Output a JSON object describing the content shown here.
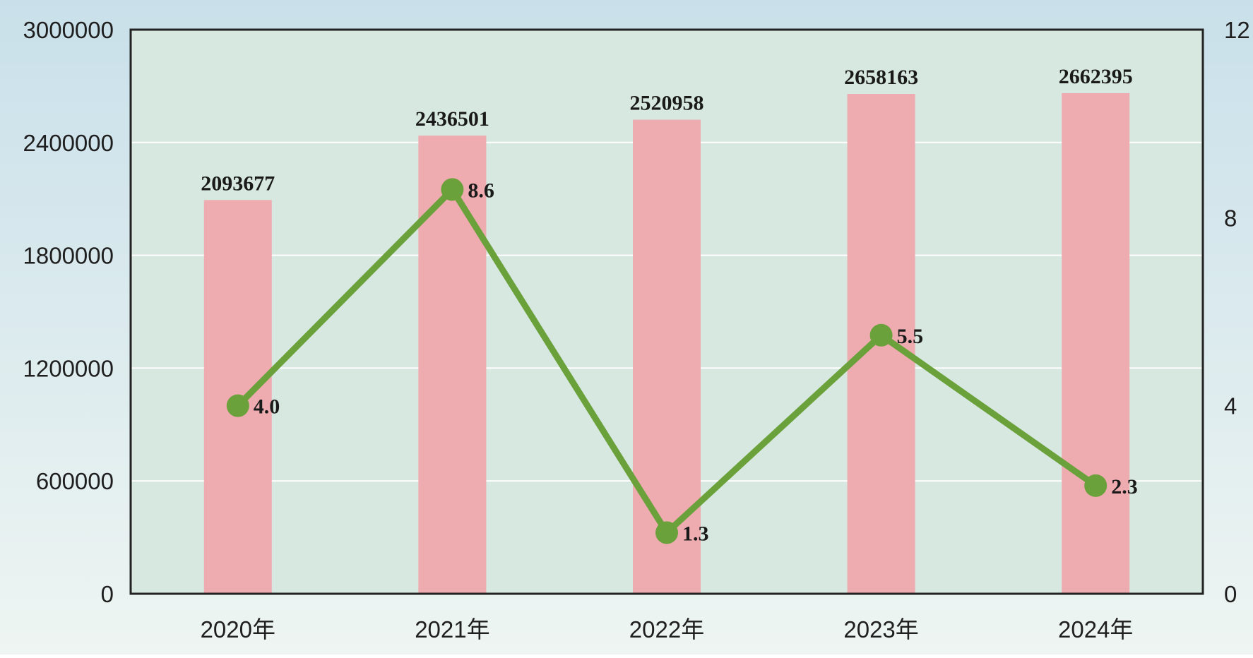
{
  "chart_data": {
    "type": "bar",
    "categories": [
      "2020年",
      "2021年",
      "2022年",
      "2023年",
      "2024年"
    ],
    "series": [
      {
        "type": "bar",
        "axis": "left",
        "values": [
          2093677,
          2436501,
          2520958,
          2658163,
          2662395
        ],
        "labels": [
          "2093677",
          "2436501",
          "2520958",
          "2658163",
          "2662395"
        ]
      },
      {
        "type": "line",
        "axis": "right",
        "values": [
          4.0,
          8.6,
          1.3,
          5.5,
          2.3
        ],
        "labels": [
          "4.0",
          "8.6",
          "1.3",
          "5.5",
          "2.3"
        ]
      }
    ],
    "y_left": {
      "range": [
        0,
        3000000
      ],
      "ticks": [
        "0",
        "600000",
        "1200000",
        "1800000",
        "2400000",
        "3000000"
      ]
    },
    "y_right": {
      "range": [
        0,
        12
      ],
      "ticks": [
        "0",
        "4",
        "8",
        "12"
      ]
    },
    "grid": true,
    "legend": "none",
    "colors": {
      "bar": "#eeabb0",
      "line": "#6aa13a",
      "plot_bg": "#d6e8e0",
      "grid": "#ffffff",
      "frame": "#222222",
      "bg_top": "#c9e0ea",
      "bg_bottom": "#eef5f2"
    }
  }
}
